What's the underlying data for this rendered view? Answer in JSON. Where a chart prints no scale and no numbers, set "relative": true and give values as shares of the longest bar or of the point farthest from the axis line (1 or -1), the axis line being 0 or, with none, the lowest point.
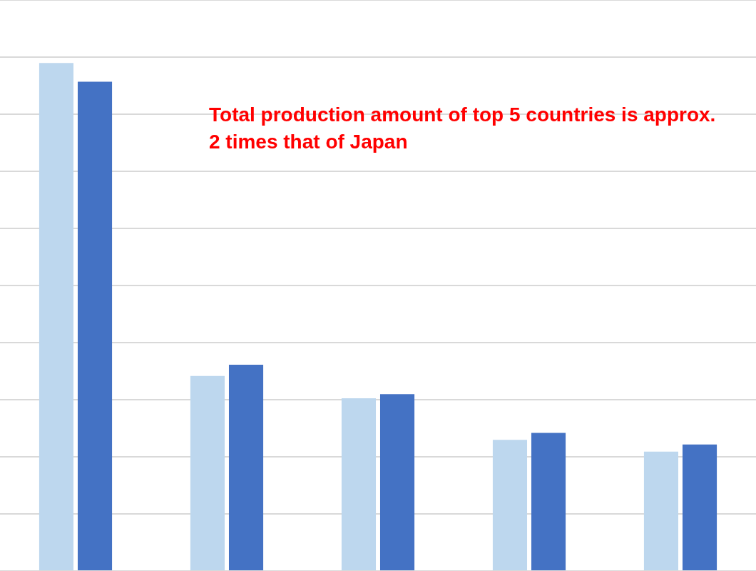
{
  "chart_data": {
    "type": "bar",
    "relative": true,
    "categories": [
      null,
      null,
      null,
      null,
      null
    ],
    "series": [
      {
        "color": "#bdd7ee",
        "values": [
          1,
          0.384,
          0.34,
          0.258,
          0.235
        ]
      },
      {
        "color": "#4472c4",
        "values": [
          0.963,
          0.406,
          0.348,
          0.272,
          0.249
        ]
      }
    ],
    "annotations": [
      "Total production amount of top 5 countries is approx. 2 times that of Japan"
    ],
    "grid": true,
    "legend": false
  }
}
